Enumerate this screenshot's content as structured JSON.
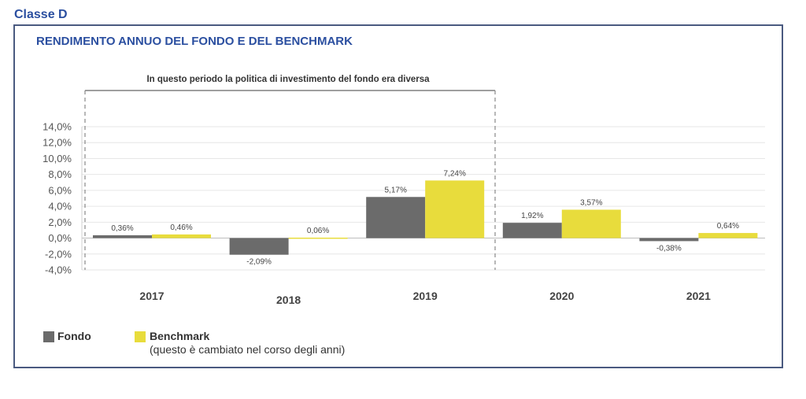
{
  "header": {
    "classe": "Classe D"
  },
  "chart_data": {
    "type": "bar",
    "title": "RENDIMENTO ANNUO DEL FONDO E DEL BENCHMARK",
    "categories": [
      "2017",
      "2018",
      "2019",
      "2020",
      "2021"
    ],
    "series": [
      {
        "name": "Fondo",
        "color": "#6b6b6b",
        "values": [
          0.36,
          -2.09,
          5.17,
          1.92,
          -0.38
        ],
        "labels": [
          "0,36%",
          "-2,09%",
          "5,17%",
          "1,92%",
          "-0,38%"
        ]
      },
      {
        "name": "Benchmark",
        "color": "#e8dc3c",
        "values": [
          0.46,
          0.06,
          7.24,
          3.57,
          0.64
        ],
        "labels": [
          "0,46%",
          "0,06%",
          "7,24%",
          "3,57%",
          "0,64%"
        ]
      }
    ],
    "ylim": [
      -4,
      14
    ],
    "yticks": [
      14,
      12,
      10,
      8,
      6,
      4,
      2,
      0,
      -2,
      -4
    ],
    "ytick_labels": [
      "14,0%",
      "12,0%",
      "10,0%",
      "8,0%",
      "6,0%",
      "4,0%",
      "2,0%",
      "0,0%",
      "-2,0%",
      "-4,0%"
    ],
    "grid": true,
    "annotation": "In questo periodo la politica di investimento del fondo era diversa",
    "legend": {
      "placement": "bottom-left",
      "fondo_label": "Fondo",
      "benchmark_label": "Benchmark",
      "benchmark_note": "(questo è cambiato nel corso degli anni)"
    }
  }
}
